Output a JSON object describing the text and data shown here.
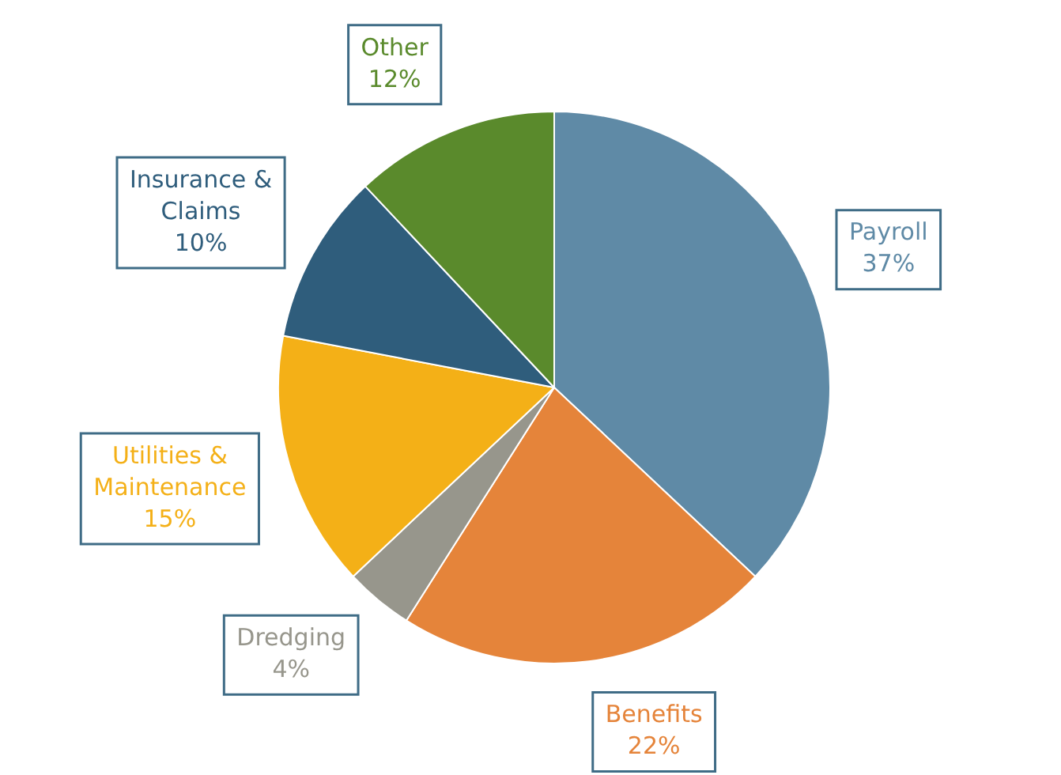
{
  "chart_data": {
    "type": "pie",
    "categories": [
      "Payroll",
      "Benefits",
      "Dredging",
      "Utilities & Maintenance",
      "Insurance & Claims",
      "Other"
    ],
    "values": [
      37,
      22,
      4,
      15,
      10,
      12
    ],
    "value_labels": [
      "37%",
      "22%",
      "4%",
      "15%",
      "10%",
      "12%"
    ],
    "colors": [
      "#5f8aa6",
      "#e5843a",
      "#97968c",
      "#f4b017",
      "#2f5d7c",
      "#5a8a2c"
    ],
    "legend": false
  }
}
